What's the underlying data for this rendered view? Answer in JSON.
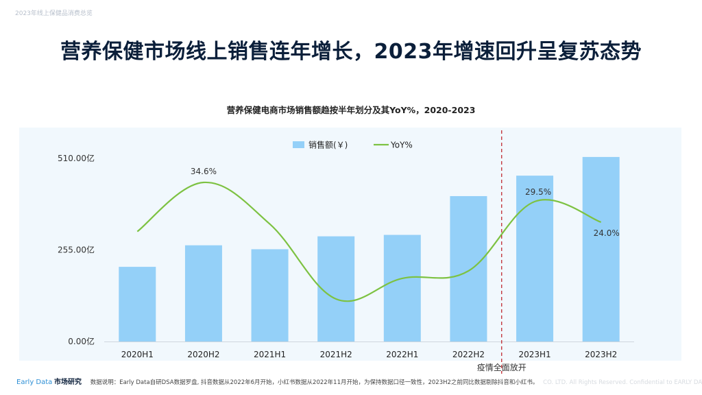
{
  "page": {
    "breadcrumb": "2023年线上保健品消费总览",
    "headline": "营养保健市场线上销售连年增长，2023年增速回升呈复苏态势"
  },
  "chart_data": {
    "type": "bar+line",
    "title": "营养保健电商市场销售额趋按半年划分及其YoY%，2020-2023",
    "categories": [
      "2020H1",
      "2020H2",
      "2021H1",
      "2021H2",
      "2022H1",
      "2022H2",
      "2023H1",
      "2023H2"
    ],
    "y_ticks": [
      "0.00亿",
      "255.00亿",
      "510.00亿"
    ],
    "y_tick_values": [
      0,
      255,
      510
    ],
    "ylim": [
      0,
      510
    ],
    "series": [
      {
        "name": "销售额(￥)",
        "kind": "bar",
        "color": "#94d0f8",
        "values": [
          208,
          268,
          257,
          293,
          297,
          405,
          462,
          514
        ]
      },
      {
        "name": "YoY%",
        "kind": "line",
        "color": "#7dc242",
        "values": [
          21.5,
          34.6,
          23.5,
          3.5,
          9.0,
          11.0,
          29.5,
          24.0
        ],
        "labels": [
          "",
          "34.6%",
          "",
          "",
          "",
          "",
          "29.5%",
          "24.0%"
        ]
      }
    ],
    "annotation": {
      "text": "疫情全面放开",
      "after_category_index": 5,
      "color": "#c0272d"
    },
    "legend_position": "top-center",
    "grid": false
  },
  "footer": {
    "brand_en": "Early Data",
    "brand_cn": "市场研究",
    "note": "数据说明：Early Data自研DSA数据罗盘, 抖音数据从2022年6月开始，小红书数据从2022年11月开始，为保持数据口径一致性，2023H2之前同比数据剔除抖音和小红书。",
    "copyright": "CO. LTD. All Rights Reserved. Confidential to EARLY DATA"
  }
}
